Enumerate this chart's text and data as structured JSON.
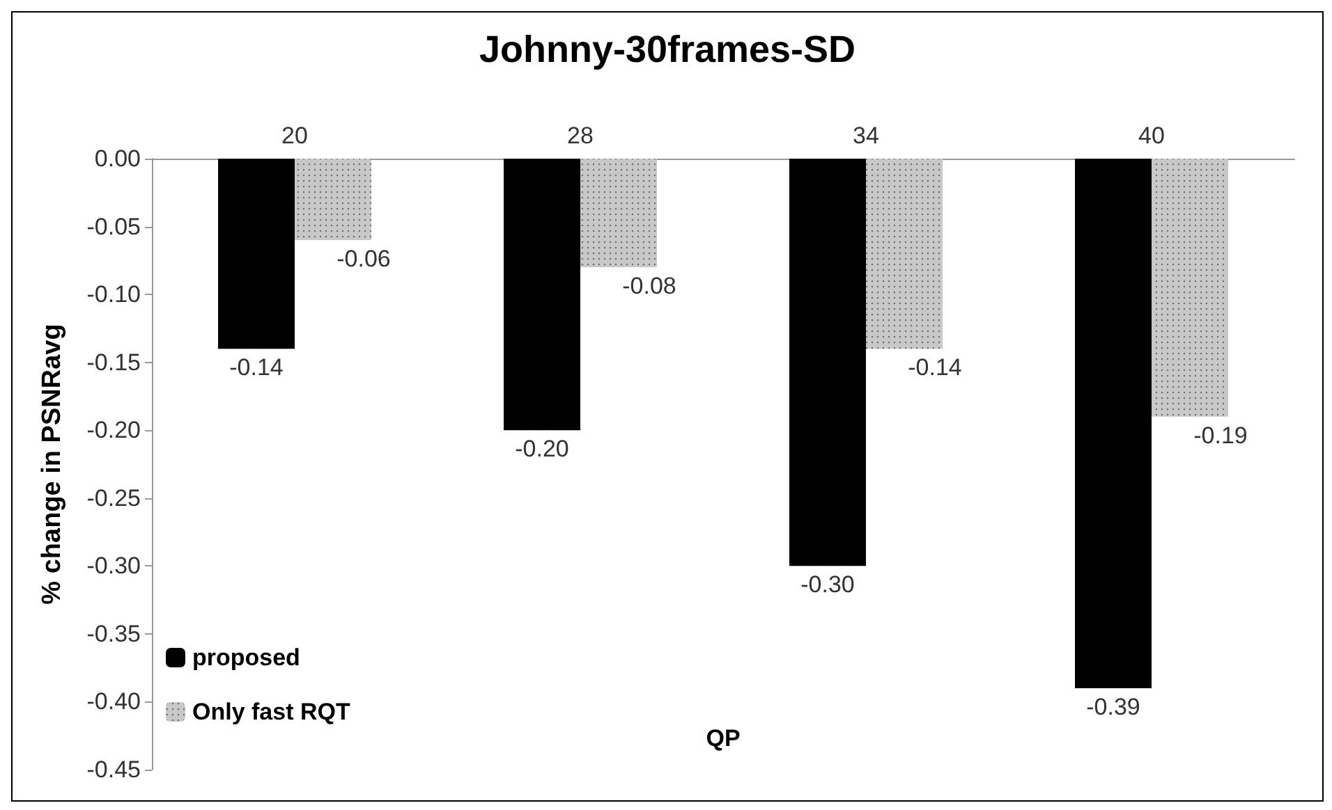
{
  "chart_data": {
    "type": "bar",
    "title": "Johnny-30frames-SD",
    "xlabel": "QP",
    "ylabel": "% change in PSNRavg",
    "categories": [
      "20",
      "28",
      "34",
      "40"
    ],
    "series": [
      {
        "name": "proposed",
        "color": "#000000",
        "values": [
          -0.14,
          -0.2,
          -0.3,
          -0.39
        ],
        "value_labels": [
          "-0.14",
          "-0.20",
          "-0.30",
          "-0.39"
        ]
      },
      {
        "name": "Only fast RQT",
        "color": "#c8c8c8",
        "values": [
          -0.06,
          -0.08,
          -0.14,
          -0.19
        ],
        "value_labels": [
          "-0.06",
          "-0.08",
          "-0.14",
          "-0.19"
        ]
      }
    ],
    "ylim": [
      -0.45,
      0
    ],
    "yticks": [
      {
        "value": -0.45,
        "label": "-0.45"
      },
      {
        "value": -0.4,
        "label": "-0.40"
      },
      {
        "value": -0.35,
        "label": "-0.35"
      },
      {
        "value": -0.3,
        "label": "-0.30"
      },
      {
        "value": -0.25,
        "label": "-0.25"
      },
      {
        "value": -0.2,
        "label": "-0.20"
      },
      {
        "value": -0.15,
        "label": "-0.15"
      },
      {
        "value": -0.1,
        "label": "-0.10"
      },
      {
        "value": -0.05,
        "label": "-0.05"
      },
      {
        "value": 0,
        "label": "0.00"
      }
    ],
    "legend": "bottom left",
    "grid": false
  }
}
